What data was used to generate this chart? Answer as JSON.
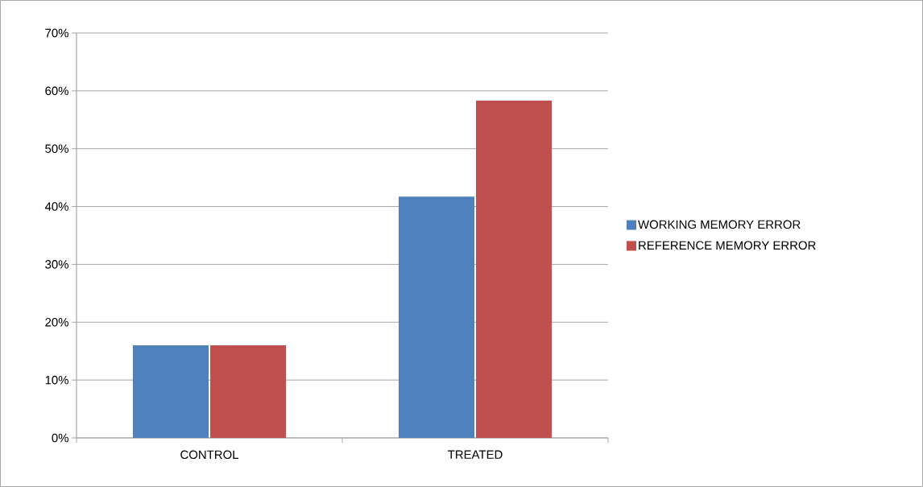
{
  "chart_data": {
    "type": "bar",
    "categories": [
      "CONTROL",
      "TREATED"
    ],
    "series": [
      {
        "name": "WORKING MEMORY ERROR",
        "color": "#4f81bd",
        "values": [
          16,
          41.7
        ]
      },
      {
        "name": "REFERENCE MEMORY ERROR",
        "color": "#c0504d",
        "values": [
          16,
          58.3
        ]
      }
    ],
    "ylim": [
      0,
      70
    ],
    "yticks": [
      {
        "value": 0,
        "label": "0%"
      },
      {
        "value": 10,
        "label": "10%"
      },
      {
        "value": 20,
        "label": "20%"
      },
      {
        "value": 30,
        "label": "30%"
      },
      {
        "value": 40,
        "label": "40%"
      },
      {
        "value": 50,
        "label": "50%"
      },
      {
        "value": 60,
        "label": "60%"
      },
      {
        "value": 70,
        "label": "70%"
      }
    ],
    "grid": "y",
    "legend": "right"
  }
}
